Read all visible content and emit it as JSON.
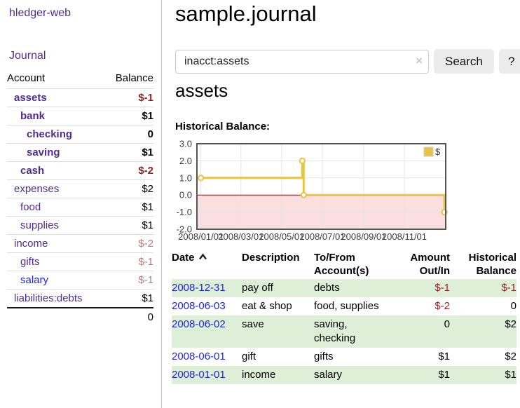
{
  "app": {
    "title": "hledger-web"
  },
  "colors": {
    "purple_link": "#522c94",
    "date_link_blue": "#2323dd",
    "negative_red": "#941f1f",
    "muted_negative": "#c17878",
    "row_green": "#deefd8",
    "chart_yellow": "#e8c345",
    "negative_region_pink": "#fbdede",
    "zero_line_dark_red": "#9b0a0a"
  },
  "sidebar": {
    "journal_link": "Journal",
    "table": {
      "account_header": "Account",
      "balance_header": "Balance"
    },
    "accounts": [
      {
        "name": "assets",
        "depth": 1,
        "bold": true,
        "balance": "$-1",
        "balance_color": "negative"
      },
      {
        "name": "bank",
        "depth": 2,
        "bold": true,
        "balance": "$1",
        "balance_color": "normal"
      },
      {
        "name": "checking",
        "depth": 3,
        "bold": true,
        "balance": "0",
        "balance_color": "normal"
      },
      {
        "name": "saving",
        "depth": 3,
        "bold": true,
        "balance": "$1",
        "balance_color": "normal"
      },
      {
        "name": "cash",
        "depth": 2,
        "bold": true,
        "balance": "$-2",
        "balance_color": "negative"
      },
      {
        "name": "expenses",
        "depth": 1,
        "bold": false,
        "balance": "$2",
        "balance_color": "normal"
      },
      {
        "name": "food",
        "depth": 2,
        "bold": false,
        "balance": "$1",
        "balance_color": "normal"
      },
      {
        "name": "supplies",
        "depth": 2,
        "bold": false,
        "balance": "$1",
        "balance_color": "normal"
      },
      {
        "name": "income",
        "depth": 1,
        "bold": false,
        "balance": "$-2",
        "balance_color": "muted-negative"
      },
      {
        "name": "gifts",
        "depth": 2,
        "bold": false,
        "balance": "$-1",
        "balance_color": "muted-negative"
      },
      {
        "name": "salary",
        "depth": 2,
        "bold": false,
        "link_color": "blue",
        "balance": "$-1",
        "balance_color": "muted-negative"
      },
      {
        "name": "liabilities:debts",
        "depth": 1,
        "bold": false,
        "balance": "$1",
        "balance_color": "normal"
      }
    ],
    "total": "0"
  },
  "header": {
    "title": "sample.journal"
  },
  "search": {
    "value": "inacct:assets",
    "clear_icon": "×",
    "button_label": "Search",
    "help_label": "?"
  },
  "account_page": {
    "title": "assets",
    "chart_label": "Historical Balance:"
  },
  "chart_data": {
    "type": "line",
    "title": "Historical Balance:",
    "step": true,
    "series": [
      {
        "name": "$",
        "color": "#e8c345",
        "points": [
          {
            "date": "2008/01/01",
            "value": 1.0
          },
          {
            "date": "2008/06/01",
            "value": 2.0
          },
          {
            "date": "2008/06/03",
            "value": 0.0
          },
          {
            "date": "2008/12/31",
            "value": -1.0
          }
        ]
      }
    ],
    "x_ticks": [
      "2008/01/01",
      "2008/03/01",
      "2008/05/01",
      "2008/07/01",
      "2008/09/01",
      "2008/11/01"
    ],
    "y_ticks": [
      3.0,
      2.0,
      1.0,
      0.0,
      -1.0,
      -2.0
    ],
    "ylim": [
      -2.0,
      3.0
    ],
    "xlim": [
      "2007/12/26",
      "2009/01/02"
    ],
    "grid": true,
    "legend": {
      "label": "$",
      "position": "top-right"
    },
    "negative_region_color": "#fbdede",
    "zero_line_color": "#9b0a0a"
  },
  "register": {
    "headers": {
      "date": "Date",
      "description": "Description",
      "accounts": "To/From Account(s)",
      "amount": "Amount Out/In",
      "balance": "Historical Balance"
    },
    "rows": [
      {
        "date": "2008-12-31",
        "description": "pay off",
        "accounts": "debts",
        "amount": "$-1",
        "amount_negative": true,
        "balance": "$-1",
        "balance_negative": true,
        "green": true
      },
      {
        "date": "2008-06-03",
        "description": "eat & shop",
        "accounts": "food, supplies",
        "amount": "$-2",
        "amount_negative": true,
        "balance": "0",
        "balance_negative": false,
        "green": false
      },
      {
        "date": "2008-06-02",
        "description": "save",
        "accounts": "saving, checking",
        "amount": "0",
        "amount_negative": false,
        "balance": "$2",
        "balance_negative": false,
        "green": true
      },
      {
        "date": "2008-06-01",
        "description": "gift",
        "accounts": "gifts",
        "amount": "$1",
        "amount_negative": false,
        "balance": "$2",
        "balance_negative": false,
        "green": false
      },
      {
        "date": "2008-01-01",
        "description": "income",
        "accounts": "salary",
        "amount": "$1",
        "amount_negative": false,
        "balance": "$1",
        "balance_negative": false,
        "green": true
      }
    ]
  }
}
